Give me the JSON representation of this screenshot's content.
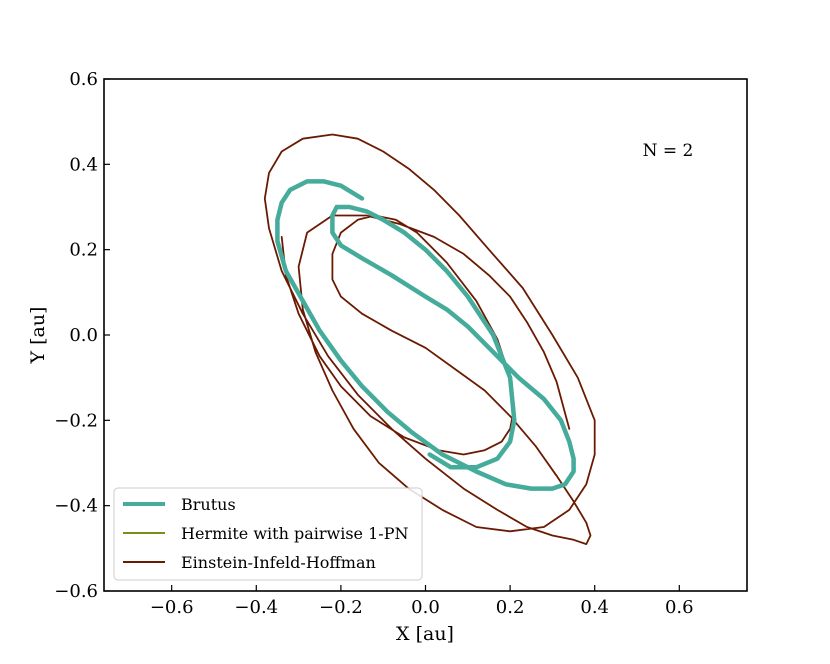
{
  "chart_data": {
    "type": "line",
    "xlabel": "X [au]",
    "ylabel": "Y [au]",
    "xlim": [
      -0.76,
      0.76
    ],
    "ylim": [
      -0.6,
      0.6
    ],
    "xticks": [
      -0.6,
      -0.4,
      -0.2,
      0.0,
      0.2,
      0.4,
      0.6
    ],
    "yticks": [
      -0.6,
      -0.4,
      -0.2,
      0.0,
      0.2,
      0.4,
      0.6
    ],
    "xtick_labels": [
      "−0.6",
      "−0.4",
      "−0.2",
      "0.0",
      "0.2",
      "0.4",
      "0.6"
    ],
    "ytick_labels": [
      "−0.6",
      "−0.4",
      "−0.2",
      "0.0",
      "0.2",
      "0.4",
      "0.6"
    ],
    "grid": false,
    "legend_position": "bottom-left",
    "annotation": "N = 2",
    "series": [
      {
        "name": "Brutus",
        "color": "#45ab9b",
        "x": [
          0.01,
          0.06,
          0.12,
          0.17,
          0.2,
          0.21,
          0.2,
          0.16,
          0.1,
          0.05,
          0.0,
          -0.05,
          -0.1,
          -0.14,
          -0.18,
          -0.21,
          -0.22,
          -0.22,
          -0.2,
          -0.15,
          -0.08,
          0.0,
          0.05,
          0.1,
          0.16,
          0.22,
          0.28,
          0.32,
          0.34,
          0.35,
          0.35,
          0.33,
          0.3,
          0.25,
          0.19,
          0.12,
          0.04,
          -0.03,
          -0.09,
          -0.15,
          -0.2,
          -0.25,
          -0.29,
          -0.33,
          -0.35,
          -0.35,
          -0.34,
          -0.32,
          -0.28,
          -0.24,
          -0.2,
          -0.15
        ],
        "y": [
          -0.28,
          -0.31,
          -0.31,
          -0.29,
          -0.25,
          -0.2,
          -0.1,
          0.0,
          0.09,
          0.15,
          0.2,
          0.24,
          0.27,
          0.29,
          0.3,
          0.3,
          0.28,
          0.24,
          0.21,
          0.18,
          0.14,
          0.09,
          0.06,
          0.02,
          -0.04,
          -0.1,
          -0.15,
          -0.2,
          -0.25,
          -0.29,
          -0.32,
          -0.35,
          -0.36,
          -0.36,
          -0.35,
          -0.32,
          -0.28,
          -0.23,
          -0.18,
          -0.12,
          -0.06,
          0.01,
          0.08,
          0.15,
          0.22,
          0.27,
          0.31,
          0.34,
          0.36,
          0.36,
          0.35,
          0.32
        ]
      },
      {
        "name": "Hermite with pairwise 1-PN",
        "color": "#7a8f1a",
        "x": [],
        "y": []
      },
      {
        "name": "Einstein-Infeld-Hoffman",
        "color": "#6b1a02",
        "x": [
          -0.34,
          -0.33,
          -0.3,
          -0.25,
          -0.2,
          -0.13,
          -0.05,
          0.03,
          0.09,
          0.14,
          0.18,
          0.2,
          0.21,
          0.2,
          0.17,
          0.12,
          0.05,
          -0.02,
          -0.07,
          -0.12,
          -0.16,
          -0.2,
          -0.22,
          -0.22,
          -0.2,
          -0.15,
          -0.08,
          0.0,
          0.07,
          0.14,
          0.2,
          0.26,
          0.31,
          0.35,
          0.38,
          0.39,
          0.38,
          0.35,
          0.3,
          0.24,
          0.17,
          0.09,
          0.0,
          -0.08,
          -0.16,
          -0.23,
          -0.29,
          -0.34,
          -0.37,
          -0.38,
          -0.37,
          -0.34,
          -0.29,
          -0.22,
          -0.16,
          -0.1,
          -0.04,
          0.02,
          0.08,
          0.15,
          0.23,
          0.3,
          0.36,
          0.4,
          0.4,
          0.38,
          0.34,
          0.28,
          0.2,
          0.12,
          0.04,
          -0.04,
          -0.11,
          -0.17,
          -0.22,
          -0.26,
          -0.29,
          -0.3,
          -0.28,
          -0.22,
          -0.14,
          -0.06,
          0.02,
          0.09,
          0.15,
          0.2,
          0.24,
          0.28,
          0.31,
          0.34
        ],
        "y": [
          0.23,
          0.14,
          0.05,
          -0.05,
          -0.12,
          -0.19,
          -0.24,
          -0.27,
          -0.28,
          -0.27,
          -0.25,
          -0.22,
          -0.17,
          -0.1,
          -0.01,
          0.08,
          0.17,
          0.24,
          0.27,
          0.28,
          0.27,
          0.24,
          0.19,
          0.13,
          0.09,
          0.05,
          0.01,
          -0.03,
          -0.08,
          -0.13,
          -0.19,
          -0.26,
          -0.33,
          -0.39,
          -0.44,
          -0.47,
          -0.49,
          -0.48,
          -0.47,
          -0.45,
          -0.41,
          -0.36,
          -0.29,
          -0.22,
          -0.14,
          -0.05,
          0.05,
          0.15,
          0.25,
          0.32,
          0.38,
          0.43,
          0.46,
          0.47,
          0.46,
          0.43,
          0.39,
          0.34,
          0.28,
          0.2,
          0.11,
          0.0,
          -0.1,
          -0.2,
          -0.28,
          -0.35,
          -0.41,
          -0.45,
          -0.46,
          -0.45,
          -0.41,
          -0.36,
          -0.3,
          -0.22,
          -0.13,
          -0.04,
          0.06,
          0.16,
          0.24,
          0.28,
          0.28,
          0.26,
          0.23,
          0.19,
          0.14,
          0.09,
          0.03,
          -0.04,
          -0.11,
          -0.22
        ]
      }
    ]
  }
}
